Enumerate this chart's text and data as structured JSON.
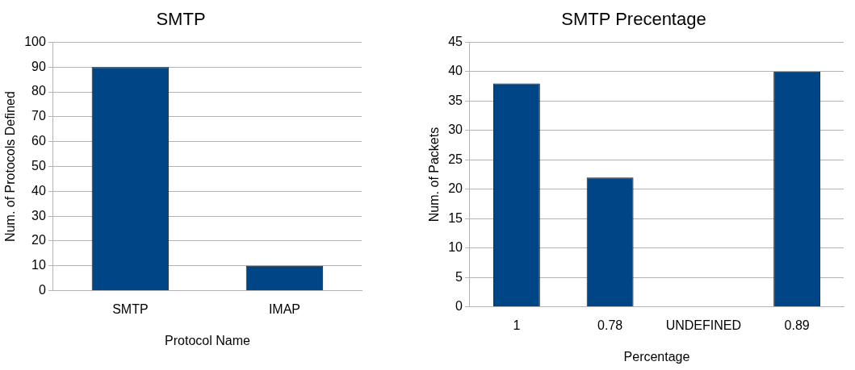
{
  "chart_data": [
    {
      "type": "bar",
      "title": "SMTP",
      "xlabel": "Protocol Name",
      "ylabel": "Num. of Protocols Defined",
      "categories": [
        "SMTP",
        "IMAP"
      ],
      "values": [
        90,
        10
      ],
      "color": "#004586",
      "ylim": [
        0,
        100
      ],
      "yticks": [
        0,
        10,
        20,
        30,
        40,
        50,
        60,
        70,
        80,
        90,
        100
      ],
      "grid": "y",
      "legend": false
    },
    {
      "type": "bar",
      "title": "SMTP Precentage",
      "xlabel": "Percentage",
      "ylabel": "Num. of Packets",
      "categories": [
        "1",
        "0.78",
        "UNDEFINED",
        "0.89"
      ],
      "values": [
        38,
        22,
        0,
        40
      ],
      "color": "#004586",
      "ylim": [
        0,
        45
      ],
      "yticks": [
        0,
        5,
        10,
        15,
        20,
        25,
        30,
        35,
        40,
        45
      ],
      "grid": "y",
      "legend": false
    }
  ]
}
